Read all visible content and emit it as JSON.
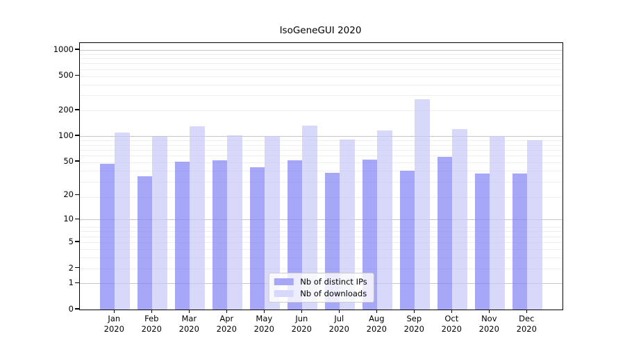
{
  "title": "IsoGeneGUI 2020",
  "chart_data": {
    "type": "bar",
    "title": "IsoGeneGUI 2020",
    "categories": [
      "Jan",
      "Feb",
      "Mar",
      "Apr",
      "May",
      "Jun",
      "Jul",
      "Aug",
      "Sep",
      "Oct",
      "Nov",
      "Dec"
    ],
    "category_year": "2020",
    "series": [
      {
        "name": "Nb of distinct IPs",
        "values": [
          47,
          34,
          50,
          52,
          43,
          52,
          37,
          53,
          39,
          57,
          36,
          36
        ],
        "bar_color": "rgba(130,130,245,0.7)",
        "legend_color": "#a7a7f8"
      },
      {
        "name": "Nb of downloads",
        "values": [
          109,
          98,
          130,
          103,
          101,
          132,
          91,
          116,
          270,
          120,
          100,
          89
        ],
        "bar_color": "rgba(200,200,248,0.7)",
        "legend_color": "#d8d8fa"
      }
    ],
    "yscale": "log1p",
    "yticks": [
      0,
      1,
      2,
      5,
      10,
      20,
      50,
      100,
      200,
      500,
      1000
    ],
    "ylim": [
      0,
      1200
    ],
    "grid": true,
    "grid_minor_positions": [
      2,
      3,
      4,
      5,
      6,
      7,
      8,
      19,
      29,
      39,
      49,
      59,
      69,
      79,
      89,
      199,
      299,
      399,
      499,
      599,
      699,
      799,
      899
    ],
    "grid_major_positions": [
      1,
      10,
      100,
      1000
    ],
    "legend_position": "lower center",
    "colors": {
      "axis": "#000000",
      "grid_minor": "#efefef",
      "grid_major": "#c6c6c6",
      "background": "#ffffff"
    }
  }
}
